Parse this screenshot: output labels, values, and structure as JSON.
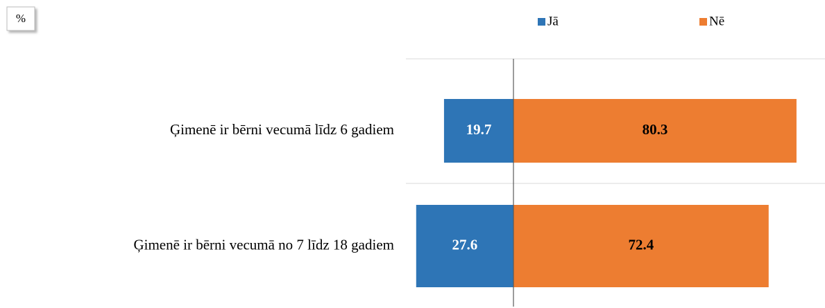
{
  "chart_data": {
    "type": "bar",
    "diverging": true,
    "unit_label": "%",
    "categories": [
      "Ģimenē ir bērni vecumā līdz 6 gadiem",
      "Ģimenē ir bērni vecumā no 7 līdz 18 gadiem"
    ],
    "series": [
      {
        "name": "Jā",
        "color": "#2e75b6",
        "values": [
          19.7,
          27.6
        ]
      },
      {
        "name": "Nē",
        "color": "#ed7d31",
        "values": [
          80.3,
          72.4
        ]
      }
    ],
    "legend": "top"
  }
}
